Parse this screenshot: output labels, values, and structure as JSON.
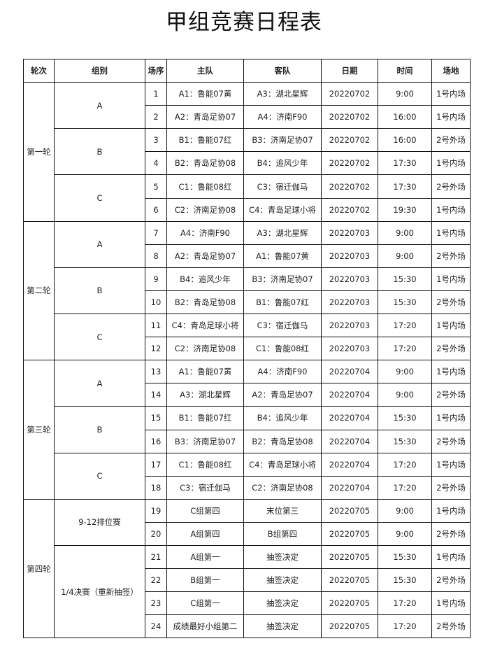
{
  "title": "甲组竞赛日程表",
  "headers": [
    "轮次",
    "组别",
    "场序",
    "主队",
    "客队",
    "日期",
    "时间",
    "场地"
  ],
  "rounds": [
    {
      "name": "第一轮",
      "groups": [
        {
          "name": "A",
          "matches": [
            {
              "no": "1",
              "home": "A1：鲁能07黄",
              "away": "A3：湖北星辉",
              "date": "20220702",
              "time": "9:00",
              "venue": "1号内场"
            },
            {
              "no": "2",
              "home": "A2：青岛足协07",
              "away": "A4：济南F90",
              "date": "20220702",
              "time": "16:00",
              "venue": "1号内场"
            }
          ]
        },
        {
          "name": "B",
          "matches": [
            {
              "no": "3",
              "home": "B1：鲁能07红",
              "away": "B3：济南足协07",
              "date": "20220702",
              "time": "16:00",
              "venue": "2号外场"
            },
            {
              "no": "4",
              "home": "B2：青岛足协08",
              "away": "B4：追风少年",
              "date": "20220702",
              "time": "17:30",
              "venue": "1号内场"
            }
          ]
        },
        {
          "name": "C",
          "matches": [
            {
              "no": "5",
              "home": "C1：鲁能08红",
              "away": "C3：宿迁伽马",
              "date": "20220702",
              "time": "17:30",
              "venue": "2号外场"
            },
            {
              "no": "6",
              "home": "C2：济南足协08",
              "away": "C4：青岛足球小将",
              "date": "20220702",
              "time": "19:30",
              "venue": "1号内场"
            }
          ]
        }
      ]
    },
    {
      "name": "第二轮",
      "groups": [
        {
          "name": "A",
          "matches": [
            {
              "no": "7",
              "home": "A4：济南F90",
              "away": "A3：湖北星辉",
              "date": "20220703",
              "time": "9:00",
              "venue": "1号内场"
            },
            {
              "no": "8",
              "home": "A2：青岛足协07",
              "away": "A1：鲁能07黄",
              "date": "20220703",
              "time": "9:00",
              "venue": "2号外场"
            }
          ]
        },
        {
          "name": "B",
          "matches": [
            {
              "no": "9",
              "home": "B4：追风少年",
              "away": "B3：济南足协07",
              "date": "20220703",
              "time": "15:30",
              "venue": "1号内场"
            },
            {
              "no": "10",
              "home": "B2：青岛足协08",
              "away": "B1：鲁能07红",
              "date": "20220703",
              "time": "15:30",
              "venue": "2号外场"
            }
          ]
        },
        {
          "name": "C",
          "matches": [
            {
              "no": "11",
              "home": "C4：青岛足球小将",
              "away": "C3：宿迁伽马",
              "date": "20220703",
              "time": "17:20",
              "venue": "1号内场"
            },
            {
              "no": "12",
              "home": "C2：济南足协08",
              "away": "C1：鲁能08红",
              "date": "20220703",
              "time": "17:20",
              "venue": "2号外场"
            }
          ]
        }
      ]
    },
    {
      "name": "第三轮",
      "groups": [
        {
          "name": "A",
          "matches": [
            {
              "no": "13",
              "home": "A1：鲁能07黄",
              "away": "A4：济南F90",
              "date": "20220704",
              "time": "9:00",
              "venue": "1号内场"
            },
            {
              "no": "14",
              "home": "A3：湖北星辉",
              "away": "A2：青岛足协07",
              "date": "20220704",
              "time": "9:00",
              "venue": "2号外场"
            }
          ]
        },
        {
          "name": "B",
          "matches": [
            {
              "no": "15",
              "home": "B1：鲁能07红",
              "away": "B4：追风少年",
              "date": "20220704",
              "time": "15:30",
              "venue": "1号内场"
            },
            {
              "no": "16",
              "home": "B3：济南足协07",
              "away": "B2：青岛足协08",
              "date": "20220704",
              "time": "15:30",
              "venue": "2号外场"
            }
          ]
        },
        {
          "name": "C",
          "matches": [
            {
              "no": "17",
              "home": "C1：鲁能08红",
              "away": "C4：青岛足球小将",
              "date": "20220704",
              "time": "17:20",
              "venue": "1号内场"
            },
            {
              "no": "18",
              "home": "C3：宿迁伽马",
              "away": "C2：济南足协08",
              "date": "20220704",
              "time": "17:20",
              "venue": "2号外场"
            }
          ]
        }
      ]
    },
    {
      "name": "第四轮",
      "groups": [
        {
          "name": "9-12排位赛",
          "matches": [
            {
              "no": "19",
              "home": "C组第四",
              "away": "末位第三",
              "date": "20220705",
              "time": "9:00",
              "venue": "1号内场"
            },
            {
              "no": "20",
              "home": "A组第四",
              "away": "B组第四",
              "date": "20220705",
              "time": "9:00",
              "venue": "2号外场"
            }
          ]
        },
        {
          "name": "1/4决赛（重新抽签）",
          "matches": [
            {
              "no": "21",
              "home": "A组第一",
              "away": "抽签决定",
              "date": "20220705",
              "time": "15:30",
              "venue": "1号内场"
            },
            {
              "no": "22",
              "home": "B组第一",
              "away": "抽签决定",
              "date": "20220705",
              "time": "15:30",
              "venue": "2号外场"
            },
            {
              "no": "23",
              "home": "C组第一",
              "away": "抽签决定",
              "date": "20220705",
              "time": "17:20",
              "venue": "1号内场"
            },
            {
              "no": "24",
              "home": "成绩最好小组第二",
              "away": "抽签决定",
              "date": "20220705",
              "time": "17:20",
              "venue": "2号外场"
            }
          ]
        }
      ]
    }
  ]
}
